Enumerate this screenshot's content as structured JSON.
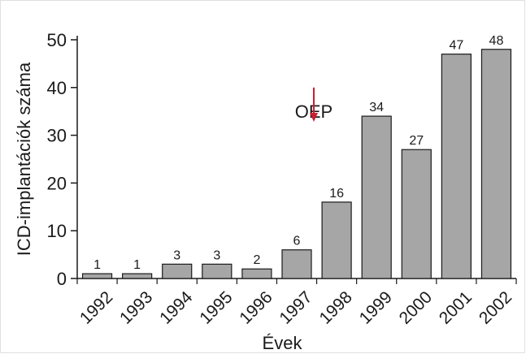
{
  "chart_data": {
    "type": "bar",
    "title": "",
    "xlabel": "Évek",
    "ylabel": "ICD-implantációk száma",
    "ylim": [
      0,
      50
    ],
    "yticks": [
      0,
      10,
      20,
      30,
      40,
      50
    ],
    "categories": [
      "1992",
      "1993",
      "1994",
      "1995",
      "1996",
      "1997",
      "1998",
      "1999",
      "2000",
      "2001",
      "2002"
    ],
    "values": [
      1,
      1,
      3,
      3,
      2,
      6,
      16,
      34,
      27,
      47,
      48
    ],
    "data_labels": [
      "1",
      "1",
      "3",
      "3",
      "2",
      "6",
      "16",
      "34",
      "27",
      "47",
      "48"
    ],
    "grid": false,
    "legend": "none",
    "bar_color": "#a6a6a6",
    "bar_edge_color": "#1a1a1a",
    "annotation": {
      "text": "OEP",
      "arrow_color": "#c8202f",
      "at_category": "1997",
      "arrow_value_range": [
        40,
        33
      ]
    }
  }
}
